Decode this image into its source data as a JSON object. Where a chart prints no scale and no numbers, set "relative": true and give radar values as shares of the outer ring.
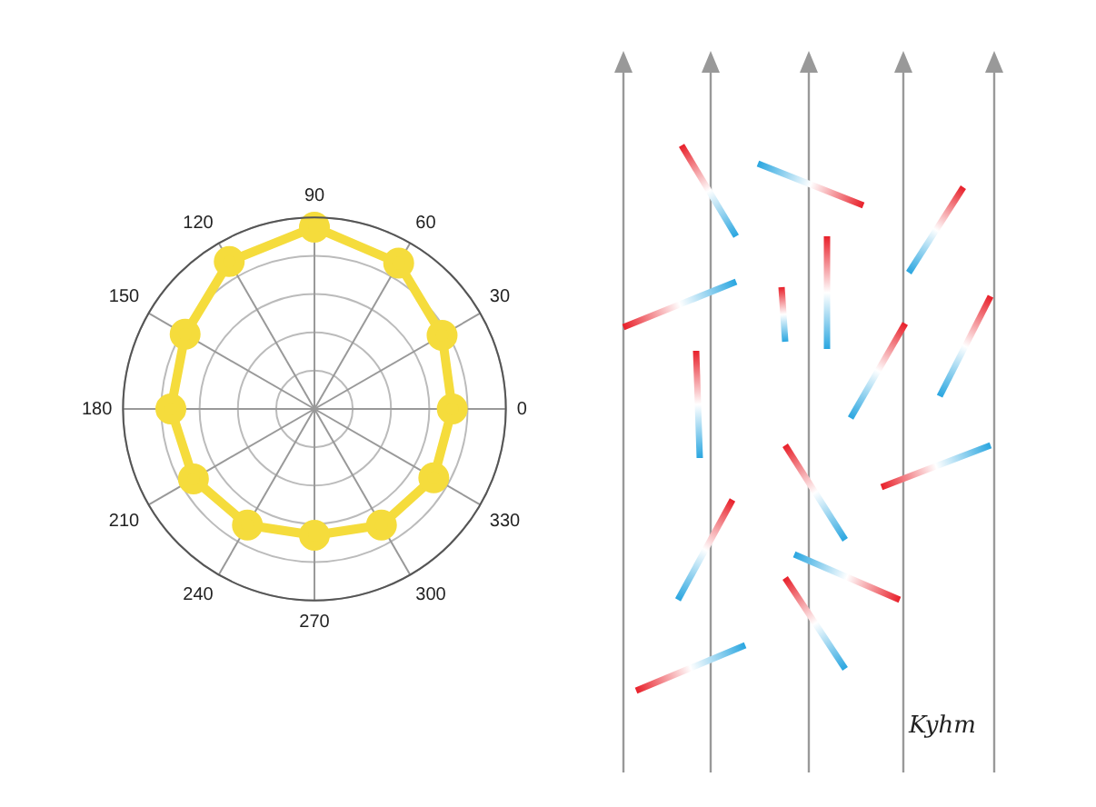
{
  "chart_data": {
    "type": "radar",
    "relative": true,
    "grid": true,
    "marker": "circle",
    "line_style": "solid",
    "categories": [
      "90",
      "60",
      "30",
      "0",
      "330",
      "300",
      "270",
      "240",
      "210",
      "180",
      "150",
      "120"
    ],
    "series": [
      {
        "color": "#f5dc3c",
        "values": [
          0.95,
          0.88,
          0.77,
          0.72,
          0.72,
          0.7,
          0.66,
          0.7,
          0.73,
          0.75,
          0.78,
          0.89
        ]
      }
    ],
    "annotations": [
      "Kyhm"
    ]
  }
}
